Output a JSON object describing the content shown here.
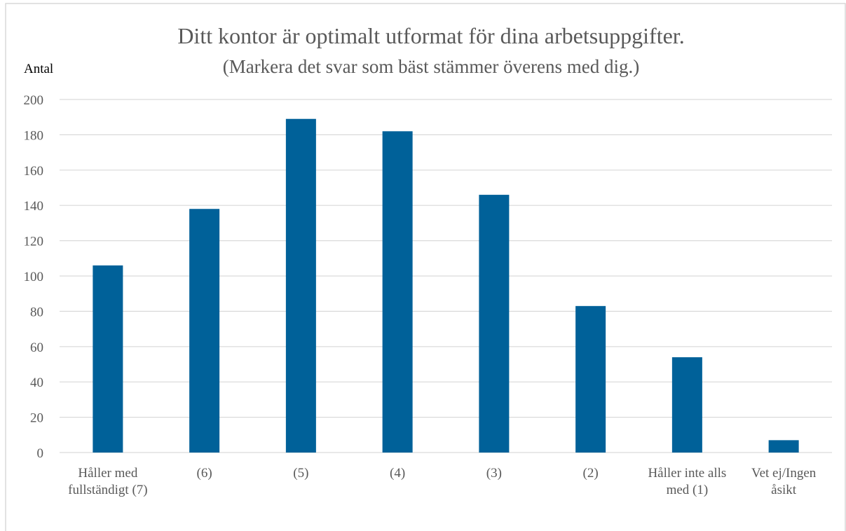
{
  "chart_data": {
    "type": "bar",
    "title": "Ditt kontor är optimalt utformat för dina arbetsuppgifter.",
    "subtitle": "(Markera det svar som bäst stämmer överens med dig.)",
    "y_label": "Antal",
    "categories": [
      "Håller med fullständigt (7)",
      "(6)",
      "(5)",
      "(4)",
      "(3)",
      "(2)",
      "Håller inte alls med (1)",
      "Vet ej/Ingen åsikt"
    ],
    "values": [
      106,
      138,
      189,
      182,
      146,
      83,
      54,
      7
    ],
    "color": "#006199",
    "ylim": [
      0,
      200
    ],
    "yticks": [
      0,
      20,
      40,
      60,
      80,
      100,
      120,
      140,
      160,
      180,
      200
    ],
    "grid": true
  }
}
